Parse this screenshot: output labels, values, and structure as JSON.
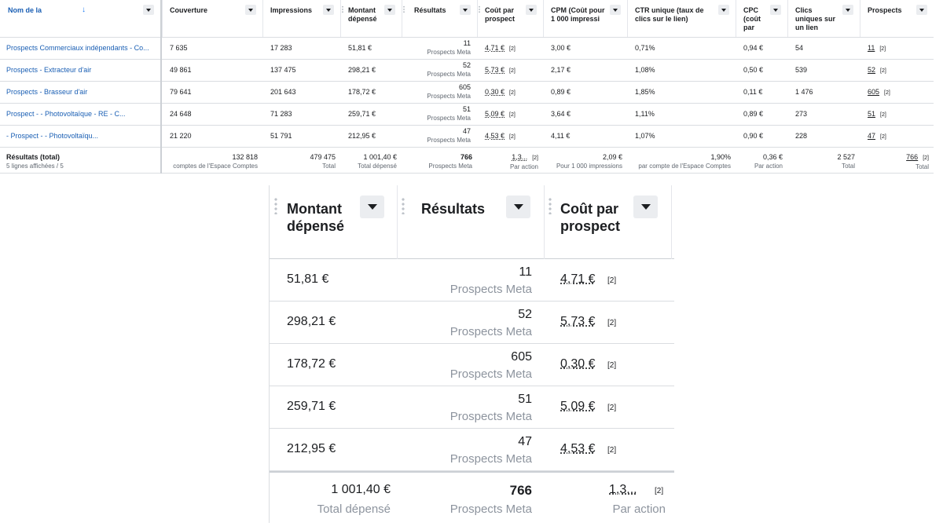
{
  "columns": {
    "name": "Nom de la",
    "reach": "Couverture",
    "impressions": "Impressions",
    "spent": "Montant dépensé",
    "results": "Résultats",
    "cost_per_lead": "Coût par prospect",
    "cpm": "CPM (Coût pour 1 000 impressi",
    "ctr": "CTR unique (taux de clics sur le lien)",
    "cpc": "CPC (coût par",
    "unique_clicks": "Clics uniques sur un lien",
    "leads": "Prospects"
  },
  "rows": [
    {
      "name": "Prospects Commerciaux indépendants - Co...",
      "reach": "7 635",
      "impressions": "17 283",
      "spent": "51,81 €",
      "results": "11",
      "results_label": "Prospects Meta",
      "cost_per_lead": "4,71 €",
      "bracket": "[2]",
      "cpm": "3,00 €",
      "ctr": "0,71%",
      "cpc": "0,94 €",
      "unique_clicks": "54",
      "leads": "11"
    },
    {
      "name": "Prospects - Extracteur d'air",
      "reach": "49 861",
      "impressions": "137 475",
      "spent": "298,21 €",
      "results": "52",
      "results_label": "Prospects Meta",
      "cost_per_lead": "5,73 €",
      "bracket": "[2]",
      "cpm": "2,17 €",
      "ctr": "1,08%",
      "cpc": "0,50 €",
      "unique_clicks": "539",
      "leads": "52"
    },
    {
      "name": "Prospects - Brasseur d'air",
      "reach": "79 641",
      "impressions": "201 643",
      "spent": "178,72 €",
      "results": "605",
      "results_label": "Prospects Meta",
      "cost_per_lead": "0,30 €",
      "bracket": "[2]",
      "cpm": "0,89 €",
      "ctr": "1,85%",
      "cpc": "0,11 €",
      "unique_clicks": "1 476",
      "leads": "605"
    },
    {
      "name": "Prospect -            - Photovoltaïque - RE - C...",
      "reach": "24 648",
      "impressions": "71 283",
      "spent": "259,71 €",
      "results": "51",
      "results_label": "Prospects Meta",
      "cost_per_lead": "5,09 €",
      "bracket": "[2]",
      "cpm": "3,64 €",
      "ctr": "1,11%",
      "cpc": "0,89 €",
      "unique_clicks": "273",
      "leads": "51"
    },
    {
      "name": "          - Prospect -            - Photovoltaïqu...",
      "reach": "21 220",
      "impressions": "51 791",
      "spent": "212,95 €",
      "results": "47",
      "results_label": "Prospects Meta",
      "cost_per_lead": "4,53 €",
      "bracket": "[2]",
      "cpm": "4,11 €",
      "ctr": "1,07%",
      "cpc": "0,90 €",
      "unique_clicks": "228",
      "leads": "47"
    }
  ],
  "totals": {
    "label": "Résultats (total)",
    "sub": "5 lignes affichées / 5",
    "reach": "132 818",
    "reach_sub": "comptes de l'Espace Comptes",
    "impressions": "479 475",
    "impressions_sub": "Total",
    "spent": "1 001,40 €",
    "spent_sub": "Total dépensé",
    "results": "766",
    "results_sub": "Prospects Meta",
    "cost_per_lead": "1,3...",
    "cost_per_lead_sub": "Par action",
    "cpm": "2,09 €",
    "cpm_sub": "Pour 1 000 impressions",
    "ctr": "1,90%",
    "ctr_sub": "par compte de l'Espace Comptes",
    "cpc": "0,36 €",
    "cpc_sub": "Par action",
    "unique_clicks": "2 527",
    "unique_clicks_sub": "Total",
    "leads": "766",
    "leads_sub": "Total",
    "bracket": "[2]"
  },
  "zoom": {
    "h_spent_1": "Montant",
    "h_spent_2": "dépensé",
    "h_results": "Résultats",
    "h_cpl_1": "Coût par",
    "h_cpl_2": "prospect"
  }
}
